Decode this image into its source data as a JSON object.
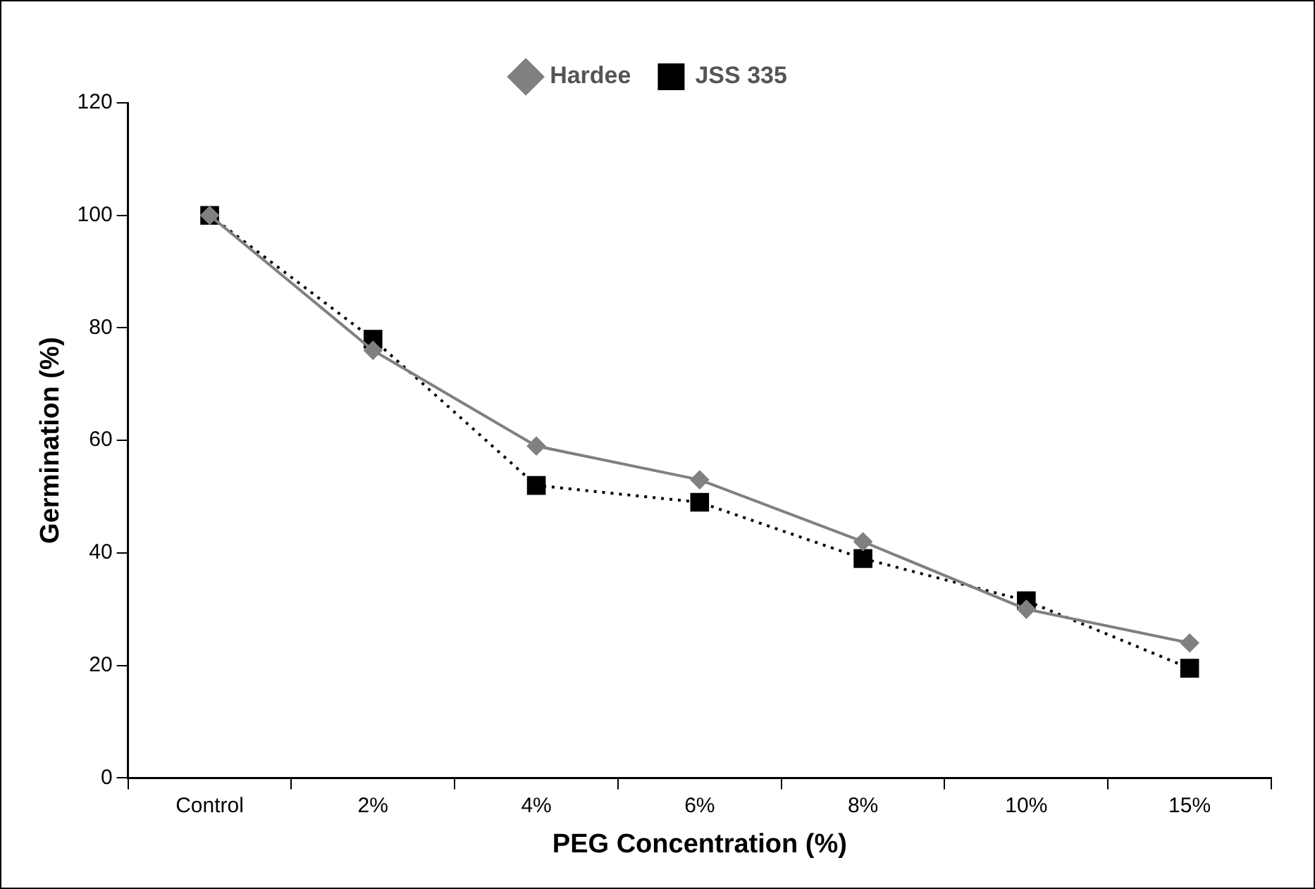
{
  "chart_data": {
    "type": "line",
    "xlabel": "PEG Concentration (%)",
    "ylabel": "Germination (%)",
    "categories": [
      "Control",
      "2%",
      "4%",
      "6%",
      "8%",
      "10%",
      "15%"
    ],
    "series": [
      {
        "name": "Hardee",
        "color": "#808080",
        "marker": "diamond",
        "line_style": "solid",
        "values": [
          100,
          76,
          59,
          53,
          42,
          30,
          24
        ]
      },
      {
        "name": "JSS 335",
        "color": "#000000",
        "marker": "square",
        "line_style": "dotted",
        "values": [
          100,
          78,
          52,
          49,
          39,
          31.5,
          19.5
        ]
      }
    ],
    "ylim": [
      0,
      120
    ],
    "yticks": [
      0,
      20,
      40,
      60,
      80,
      100,
      120
    ],
    "grid": false,
    "legend": "top"
  }
}
